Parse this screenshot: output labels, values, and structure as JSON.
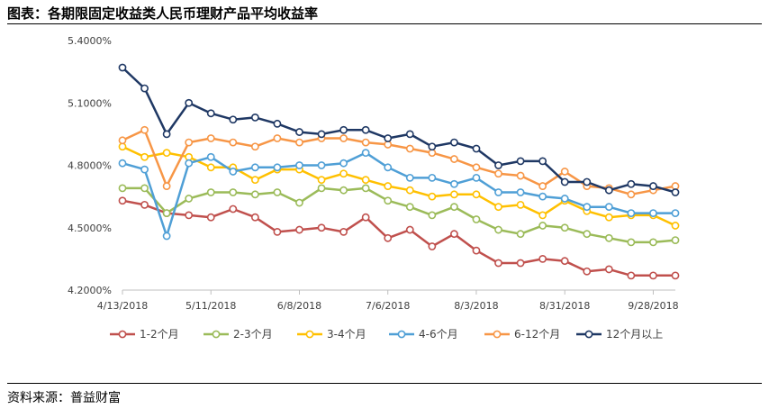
{
  "header": {
    "title": "图表：各期限固定收益类人民币理财产品平均收益率"
  },
  "footer": {
    "source": "资料来源：普益财富"
  },
  "chart_data": {
    "type": "line",
    "title": "",
    "xlabel": "",
    "ylabel": "",
    "ylim": [
      4.2,
      5.4
    ],
    "yticks": [
      4.2,
      4.5,
      4.8,
      5.1,
      5.4
    ],
    "ytick_labels": [
      "4.2000%",
      "4.5000%",
      "4.8000%",
      "5.1000%",
      "5.4000%"
    ],
    "xtick_labels": [
      "4/13/2018",
      "5/11/2018",
      "6/8/2018",
      "7/6/2018",
      "8/3/2018",
      "8/31/2018",
      "9/28/2018"
    ],
    "xtick_index": [
      0,
      4,
      8,
      12,
      16,
      20,
      24
    ],
    "n_points": 26,
    "grid": false,
    "legend_position": "bottom",
    "series": [
      {
        "name": "1-2个月",
        "color": "#C0504D",
        "values": [
          4.63,
          4.61,
          4.57,
          4.56,
          4.55,
          4.59,
          4.55,
          4.48,
          4.49,
          4.5,
          4.48,
          4.55,
          4.45,
          4.49,
          4.41,
          4.47,
          4.39,
          4.33,
          4.33,
          4.35,
          4.34,
          4.29,
          4.3,
          4.27,
          4.27,
          4.27
        ]
      },
      {
        "name": "2-3个月",
        "color": "#9BBB59",
        "values": [
          4.69,
          4.69,
          4.57,
          4.64,
          4.67,
          4.67,
          4.66,
          4.67,
          4.62,
          4.69,
          4.68,
          4.69,
          4.63,
          4.6,
          4.56,
          4.6,
          4.54,
          4.49,
          4.47,
          4.51,
          4.5,
          4.47,
          4.45,
          4.43,
          4.43,
          4.44
        ]
      },
      {
        "name": "3-4个月",
        "color": "#FFC000",
        "values": [
          4.89,
          4.84,
          4.86,
          4.84,
          4.79,
          4.79,
          4.73,
          4.78,
          4.78,
          4.73,
          4.76,
          4.73,
          4.7,
          4.68,
          4.65,
          4.66,
          4.66,
          4.6,
          4.61,
          4.56,
          4.63,
          4.58,
          4.55,
          4.56,
          4.56,
          4.51
        ]
      },
      {
        "name": "4-6个月",
        "color": "#4F9FD6",
        "values": [
          4.81,
          4.78,
          4.46,
          4.81,
          4.84,
          4.77,
          4.79,
          4.79,
          4.8,
          4.8,
          4.81,
          4.86,
          4.79,
          4.74,
          4.74,
          4.71,
          4.74,
          4.67,
          4.67,
          4.65,
          4.64,
          4.6,
          4.6,
          4.57,
          4.57,
          4.57
        ]
      },
      {
        "name": "6-12个月",
        "color": "#F79646",
        "values": [
          4.92,
          4.97,
          4.7,
          4.91,
          4.93,
          4.91,
          4.89,
          4.93,
          4.91,
          4.93,
          4.93,
          4.91,
          4.9,
          4.88,
          4.86,
          4.83,
          4.79,
          4.76,
          4.75,
          4.7,
          4.77,
          4.7,
          4.69,
          4.66,
          4.68,
          4.7
        ]
      },
      {
        "name": "12个月以上",
        "color": "#1F3864",
        "values": [
          5.27,
          5.17,
          4.95,
          5.1,
          5.05,
          5.02,
          5.03,
          5.0,
          4.96,
          4.95,
          4.97,
          4.97,
          4.93,
          4.95,
          4.89,
          4.91,
          4.88,
          4.8,
          4.82,
          4.82,
          4.72,
          4.72,
          4.68,
          4.71,
          4.7,
          4.67
        ]
      }
    ]
  }
}
